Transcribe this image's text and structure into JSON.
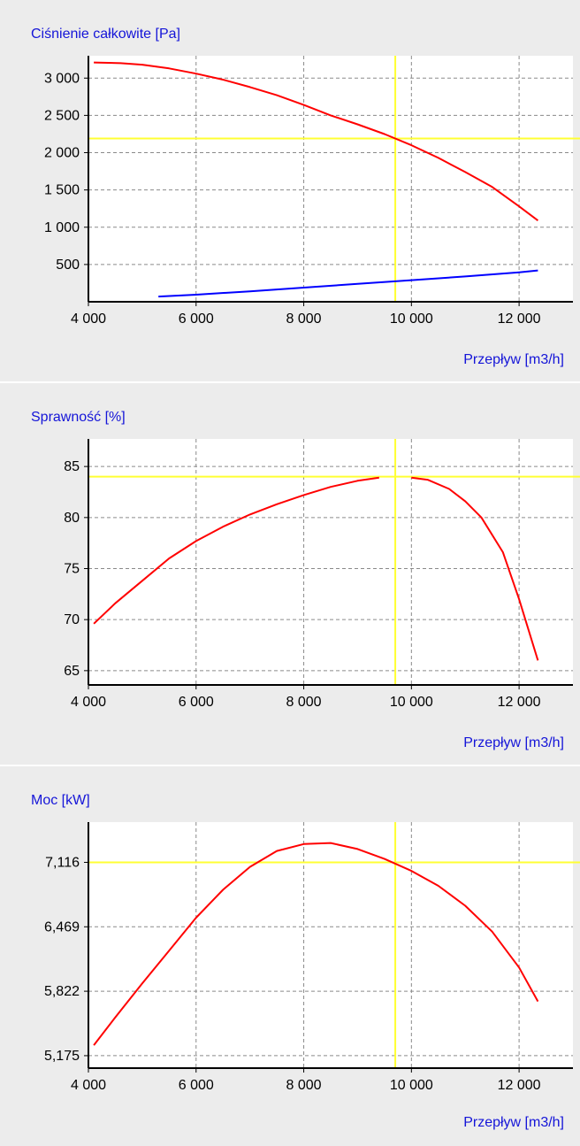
{
  "colors": {
    "panel_bg": "#ececec",
    "plot_bg": "#ffffff",
    "grid": "#8a8a8a",
    "label_text": "#1515d8",
    "operating_point_line": "#ffff33",
    "curve": "#ff0000",
    "system_curve": "#0000ff"
  },
  "chart_data": [
    {
      "type": "line",
      "title": "Ciśnienie całkowite [Pa]",
      "xlabel": "Przepływ [m3/h]",
      "ylabel": "",
      "xlim": [
        4000,
        13000
      ],
      "ylim": [
        0,
        3300
      ],
      "x_ticks": [
        4000,
        6000,
        8000,
        10000,
        12000
      ],
      "x_tick_labels": [
        "4 000",
        "6 000",
        "8 000",
        "10 000",
        "12 000"
      ],
      "y_ticks": [
        500,
        1000,
        1500,
        2000,
        2500,
        3000
      ],
      "y_tick_labels": [
        "500",
        "1 000",
        "1 500",
        "2 000",
        "2 500",
        "3 000"
      ],
      "grid": true,
      "operating_point": {
        "x": 9700,
        "y": 2190
      },
      "series": [
        {
          "color": "red",
          "x": [
            4100,
            4600,
            5000,
            5500,
            6000,
            6500,
            7000,
            7500,
            8000,
            8500,
            9000,
            9500,
            10000,
            10500,
            11000,
            11500,
            12000,
            12350
          ],
          "values": [
            3210,
            3200,
            3180,
            3130,
            3060,
            2980,
            2880,
            2770,
            2640,
            2500,
            2380,
            2250,
            2100,
            1930,
            1740,
            1540,
            1280,
            1090
          ]
        },
        {
          "color": "blue",
          "x": [
            5300,
            6000,
            7000,
            8000,
            9000,
            10000,
            11000,
            12000,
            12350
          ],
          "values": [
            70,
            95,
            140,
            190,
            240,
            290,
            340,
            395,
            420
          ]
        }
      ]
    },
    {
      "type": "line",
      "title": "Sprawność [%]",
      "xlabel": "Przepływ [m3/h]",
      "ylabel": "",
      "xlim": [
        4000,
        13000
      ],
      "ylim": [
        63.6,
        87.7
      ],
      "x_ticks": [
        4000,
        6000,
        8000,
        10000,
        12000
      ],
      "x_tick_labels": [
        "4 000",
        "6 000",
        "8 000",
        "10 000",
        "12 000"
      ],
      "y_ticks": [
        65,
        70,
        75,
        80,
        85
      ],
      "y_tick_labels": [
        "65",
        "70",
        "75",
        "80",
        "85"
      ],
      "grid": true,
      "operating_point": {
        "x": 9700,
        "y": 84
      },
      "series": [
        {
          "color": "red",
          "x": [
            4100,
            4500,
            5000,
            5500,
            6000,
            6500,
            7000,
            7500,
            8000,
            8500,
            9000,
            9400
          ],
          "values": [
            69.6,
            71.6,
            73.8,
            76.0,
            77.7,
            79.1,
            80.3,
            81.3,
            82.2,
            83.0,
            83.6,
            83.9
          ]
        },
        {
          "color": "red",
          "x": [
            10000,
            10300,
            10700,
            11000,
            11300,
            11700,
            12000,
            12350
          ],
          "values": [
            83.9,
            83.7,
            82.8,
            81.6,
            80.0,
            76.6,
            72.0,
            66.0
          ]
        }
      ]
    },
    {
      "type": "line",
      "title": "Moc [kW]",
      "xlabel": "Przepływ [m3/h]",
      "ylabel": "",
      "xlim": [
        4000,
        13000
      ],
      "ylim": [
        5.05,
        7.52
      ],
      "x_ticks": [
        4000,
        6000,
        8000,
        10000,
        12000
      ],
      "x_tick_labels": [
        "4 000",
        "6 000",
        "8 000",
        "10 000",
        "12 000"
      ],
      "y_ticks": [
        5.175,
        5.822,
        6.469,
        7.116
      ],
      "y_tick_labels": [
        "5,175",
        "5,822",
        "6,469",
        "7,116"
      ],
      "grid": true,
      "operating_point": {
        "x": 9700,
        "y": 7.116
      },
      "series": [
        {
          "color": "red",
          "x": [
            4100,
            4500,
            5000,
            5500,
            6000,
            6500,
            7000,
            7500,
            8000,
            8500,
            9000,
            9500,
            10000,
            10500,
            11000,
            11500,
            12000,
            12350
          ],
          "values": [
            5.28,
            5.56,
            5.9,
            6.23,
            6.56,
            6.84,
            7.07,
            7.23,
            7.3,
            7.31,
            7.25,
            7.15,
            7.03,
            6.88,
            6.68,
            6.42,
            6.06,
            5.72
          ]
        }
      ]
    }
  ]
}
